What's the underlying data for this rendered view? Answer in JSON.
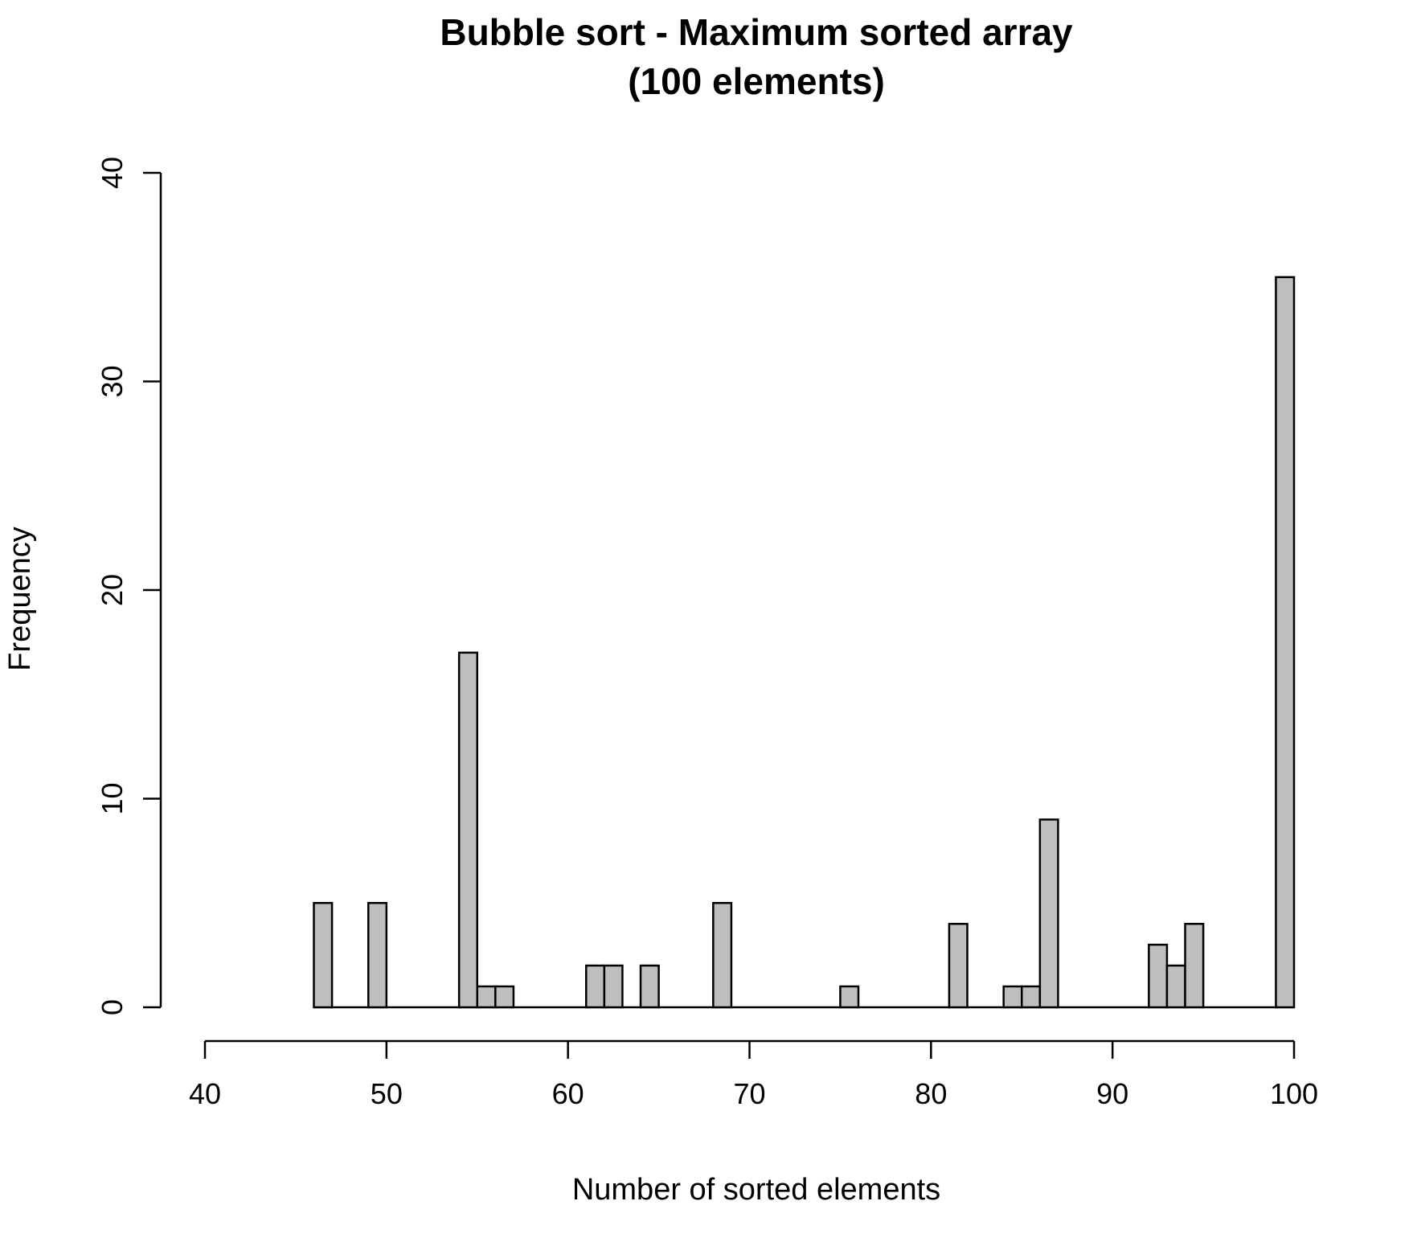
{
  "chart_data": {
    "type": "bar",
    "title": [
      "Bubble sort - Maximum sorted array",
      "(100 elements)"
    ],
    "xlabel": "Number of sorted elements",
    "ylabel": "Frequency",
    "xlim": [
      40,
      100
    ],
    "ylim": [
      0,
      40
    ],
    "xticks": [
      "40",
      "50",
      "60",
      "70",
      "80",
      "90",
      "100"
    ],
    "yticks": [
      "0",
      "10",
      "20",
      "30",
      "40"
    ],
    "bin_width": 1,
    "bins_start": 46,
    "bins_end": 100,
    "bar_color": "#bebebe",
    "bars": [
      {
        "x0": 46,
        "x1": 47,
        "count": 5
      },
      {
        "x0": 49,
        "x1": 50,
        "count": 5
      },
      {
        "x0": 54,
        "x1": 55,
        "count": 17
      },
      {
        "x0": 55,
        "x1": 56,
        "count": 1
      },
      {
        "x0": 56,
        "x1": 57,
        "count": 1
      },
      {
        "x0": 61,
        "x1": 62,
        "count": 2
      },
      {
        "x0": 62,
        "x1": 63,
        "count": 2
      },
      {
        "x0": 64,
        "x1": 65,
        "count": 2
      },
      {
        "x0": 68,
        "x1": 69,
        "count": 5
      },
      {
        "x0": 75,
        "x1": 76,
        "count": 1
      },
      {
        "x0": 81,
        "x1": 82,
        "count": 4
      },
      {
        "x0": 84,
        "x1": 85,
        "count": 1
      },
      {
        "x0": 85,
        "x1": 86,
        "count": 1
      },
      {
        "x0": 86,
        "x1": 87,
        "count": 9
      },
      {
        "x0": 92,
        "x1": 93,
        "count": 3
      },
      {
        "x0": 93,
        "x1": 94,
        "count": 2
      },
      {
        "x0": 94,
        "x1": 95,
        "count": 4
      },
      {
        "x0": 99,
        "x1": 100,
        "count": 35
      }
    ],
    "grid": false,
    "legend": "none"
  }
}
